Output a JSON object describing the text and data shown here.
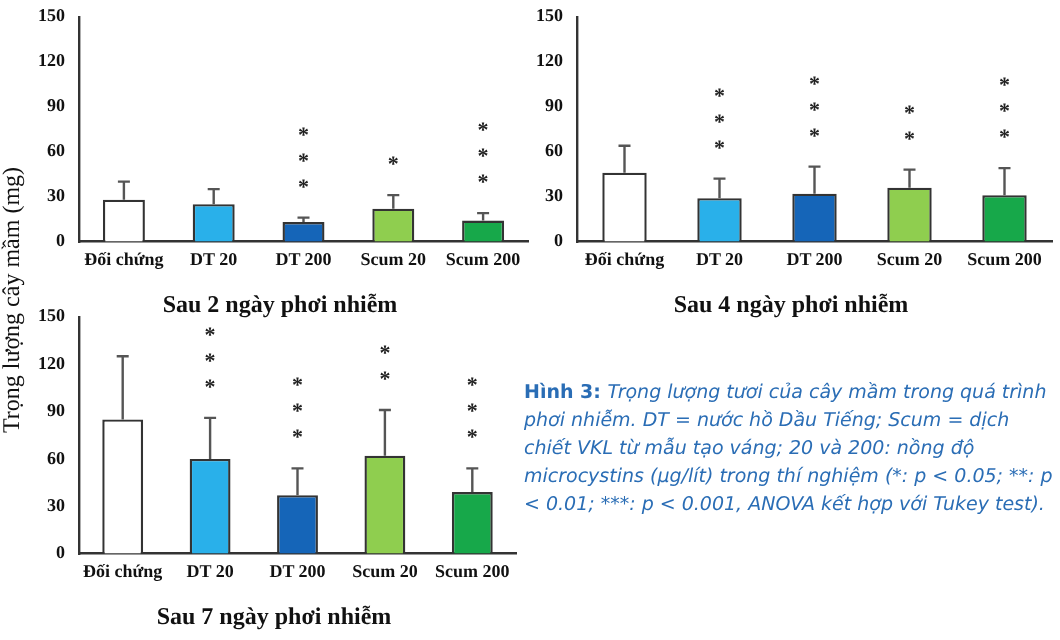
{
  "chart_data": [
    {
      "type": "bar",
      "title": "Sau 2 ngày phơi nhiễm",
      "ylabel": "Trọng lượng cây mầm (mg)",
      "categories": [
        "Đối chứng",
        "DT 20",
        "DT 200",
        "Scum 20",
        "Scum 200"
      ],
      "values": [
        28,
        25,
        13,
        22,
        14
      ],
      "errors": [
        [
          28,
          40
        ],
        [
          25,
          35
        ],
        [
          13,
          16
        ],
        [
          22,
          31
        ],
        [
          14,
          19
        ]
      ],
      "colors": [
        "#ffffff",
        "#29b0ea",
        "#1565b8",
        "#8fce4f",
        "#17a84a"
      ],
      "ylim": [
        0,
        150
      ],
      "yticks": [
        0,
        30,
        60,
        90,
        120,
        150
      ],
      "grid": false,
      "legend": false,
      "annotations": [
        {
          "text": "***",
          "x": "DT 200",
          "y": 13
        },
        {
          "text": "*",
          "x": "Scum 20",
          "y": 22
        },
        {
          "text": "***",
          "x": "Scum 200",
          "y": 14
        }
      ]
    },
    {
      "type": "bar",
      "title": "Sau 4 ngày phơi nhiễm",
      "categories": [
        "Đối chứng",
        "DT 20",
        "DT 200",
        "Scum 20",
        "Scum 200"
      ],
      "values": [
        46,
        29,
        32,
        36,
        31
      ],
      "errors": [
        [
          46,
          64
        ],
        [
          29,
          42
        ],
        [
          32,
          50
        ],
        [
          36,
          48
        ],
        [
          31,
          49
        ]
      ],
      "colors": [
        "#ffffff",
        "#29b0ea",
        "#1565b8",
        "#8fce4f",
        "#17a84a"
      ],
      "ylim": [
        0,
        150
      ],
      "yticks": [
        0,
        30,
        60,
        90,
        120,
        150
      ],
      "grid": false,
      "legend": false,
      "annotations": [
        {
          "text": "***",
          "x": "DT 20",
          "y": 29
        },
        {
          "text": "***",
          "x": "DT 200",
          "y": 32
        },
        {
          "text": "**",
          "x": "Scum 20",
          "y": 36
        },
        {
          "text": "***",
          "x": "Scum 200",
          "y": 31
        }
      ]
    },
    {
      "type": "bar",
      "title": "Sau 7 ngày phơi nhiễm",
      "categories": [
        "Đối chứng",
        "DT 20",
        "DT 200",
        "Scum 20",
        "Scum 200"
      ],
      "values": [
        85,
        60,
        37,
        62,
        39
      ],
      "errors": [
        [
          85,
          125
        ],
        [
          60,
          86
        ],
        [
          37,
          54
        ],
        [
          62,
          91
        ],
        [
          39,
          54
        ]
      ],
      "colors": [
        "#ffffff",
        "#29b0ea",
        "#1565b8",
        "#8fce4f",
        "#17a84a"
      ],
      "ylim": [
        0,
        150
      ],
      "yticks": [
        0,
        30,
        60,
        90,
        120,
        150
      ],
      "grid": false,
      "legend": false,
      "annotations": [
        {
          "text": "***",
          "x": "DT 20",
          "y": 60
        },
        {
          "text": "***",
          "x": "DT 200",
          "y": 37
        },
        {
          "text": "**",
          "x": "Scum 20",
          "y": 62
        },
        {
          "text": "***",
          "x": "Scum 200",
          "y": 39
        }
      ]
    },
    {
      "type": "other",
      "annotations": [
        "Hình 3:",
        "Trọng lượng tươi của cây mầm trong quá trình phơi nhiễm. DT = nước hồ Dầu Tiếng; Scum = dịch chiết VKL từ mẫu tạo váng; 20 và 200: nồng độ microcystins (μg/lít) trong thí nghiệm (*: p < 0.05; **: p < 0.01; ***: p < 0.001, ANOVA kết hợp với Tukey test)."
      ]
    }
  ]
}
